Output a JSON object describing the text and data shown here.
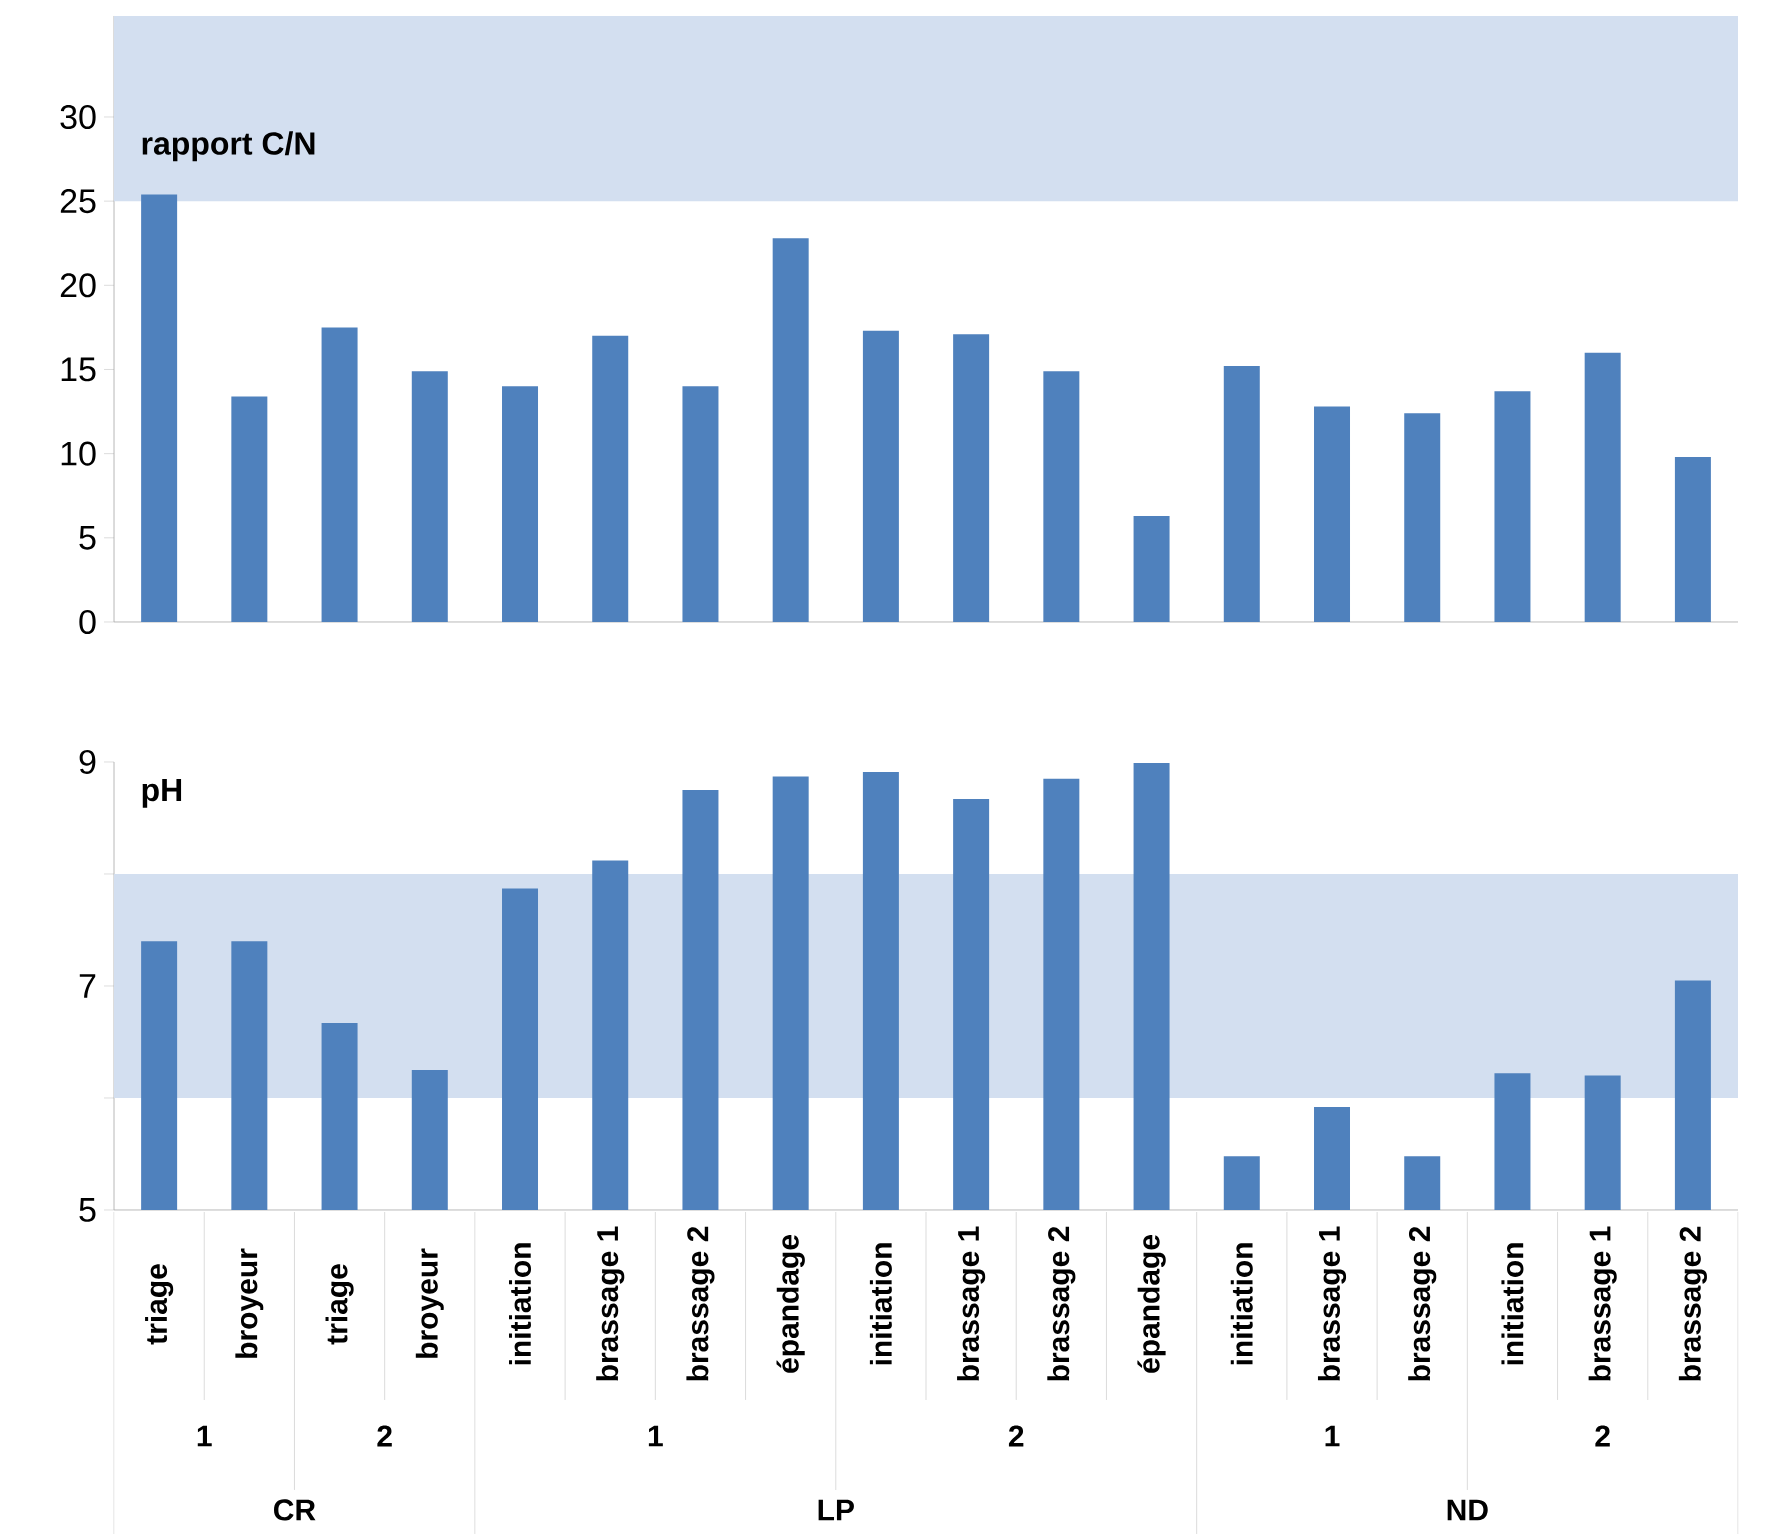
{
  "chart_data": [
    {
      "type": "bar",
      "title": "rapport C/N",
      "categories": [
        null,
        null,
        null,
        null,
        null,
        null,
        null,
        null,
        null,
        null,
        null,
        null,
        null,
        null,
        null,
        null,
        null,
        null
      ],
      "values": [
        25.4,
        13.4,
        17.5,
        14.9,
        14.0,
        17.0,
        14.0,
        22.8,
        17.3,
        17.1,
        14.9,
        6.3,
        15.2,
        12.8,
        12.4,
        13.7,
        16.0,
        9.8
      ],
      "color": "#4f81bd",
      "ylim": [
        0,
        36
      ],
      "yticks": [
        0,
        5,
        10,
        15,
        20,
        25,
        30
      ],
      "tick_labels": "y",
      "bands": [
        {
          "axis": "y",
          "from": 25,
          "to": 36,
          "color": "#d3dff0"
        }
      ]
    },
    {
      "type": "bar",
      "title": "pH",
      "categories": [
        "triage",
        "broyeur",
        "triage",
        "broyeur",
        "initiation",
        "brassage 1",
        "brassage 2",
        "épandage",
        "initiation",
        "brassage 1",
        "brassage 2",
        "épandage",
        "initiation",
        "brassage 1",
        "brassage 2",
        "initiation",
        "brassage 1",
        "brassage 2"
      ],
      "values": [
        7.4,
        7.4,
        6.67,
        6.25,
        7.87,
        8.12,
        8.75,
        8.87,
        8.91,
        8.67,
        8.85,
        8.99,
        5.48,
        5.92,
        5.48,
        6.22,
        6.2,
        7.05
      ],
      "color": "#4f81bd",
      "ylim": [
        5,
        9
      ],
      "yticks": [
        5,
        {
          "value": 6,
          "label": null
        },
        7,
        {
          "value": 8,
          "label": null
        },
        9
      ],
      "bands": [
        {
          "axis": "y",
          "from": 6,
          "to": 8,
          "color": "#d3dff0"
        }
      ],
      "annotations": [
        "1",
        "2",
        "1",
        "2",
        "1",
        "2",
        "CR",
        "LP",
        "ND"
      ]
    }
  ]
}
